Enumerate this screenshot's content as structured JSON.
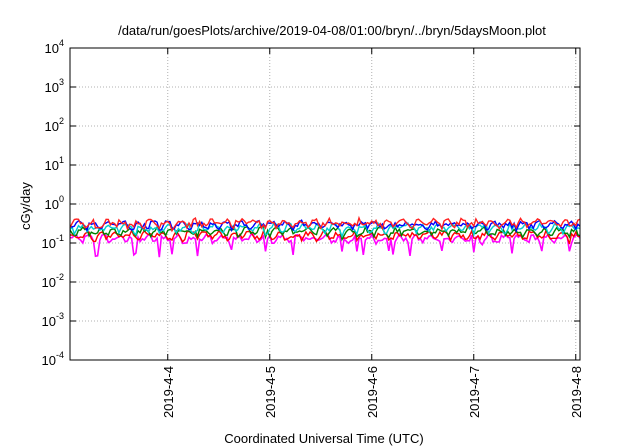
{
  "chart_data": {
    "type": "line",
    "title": "/data/run/goesPlots/archive/2019-04-08/01:00/bryn/../bryn/5daysMoon.plot",
    "xlabel": "Coordinated Universal Time (UTC)",
    "ylabel": "cGy/day",
    "yscale": "log",
    "ylim": [
      0.0001,
      10000
    ],
    "xlim": [
      "2019-04-03 01:00",
      "2019-04-08 01:00"
    ],
    "grid": true,
    "legend": "none",
    "y_ticks": [
      {
        "base": "10",
        "exp": "-4",
        "value": 0.0001
      },
      {
        "base": "10",
        "exp": "-3",
        "value": 0.001
      },
      {
        "base": "10",
        "exp": "-2",
        "value": 0.01
      },
      {
        "base": "10",
        "exp": "-1",
        "value": 0.1
      },
      {
        "base": "10",
        "exp": "0",
        "value": 1
      },
      {
        "base": "10",
        "exp": "1",
        "value": 10
      },
      {
        "base": "10",
        "exp": "2",
        "value": 100
      },
      {
        "base": "10",
        "exp": "3",
        "value": 1000
      },
      {
        "base": "10",
        "exp": "4",
        "value": 10000
      }
    ],
    "x_ticks": [
      {
        "label": "2019-4-4",
        "date": "2019-04-04 00:00"
      },
      {
        "label": "2019-4-5",
        "date": "2019-04-05 00:00"
      },
      {
        "label": "2019-4-6",
        "date": "2019-04-06 00:00"
      },
      {
        "label": "2019-4-7",
        "date": "2019-04-07 00:00"
      },
      {
        "label": "2019-4-8",
        "date": "2019-04-08 00:00"
      }
    ],
    "series": [
      {
        "color": "#ff00ff",
        "typical": 0.13,
        "dips_to": 0.05
      },
      {
        "color": "#ff0000",
        "typical": 0.16
      },
      {
        "color": "#008000",
        "typical": 0.2
      },
      {
        "color": "#00ced1",
        "typical": 0.25
      },
      {
        "color": "#0000ff",
        "typical": 0.3
      },
      {
        "color": "#ff2020",
        "typical": 0.33
      }
    ]
  }
}
